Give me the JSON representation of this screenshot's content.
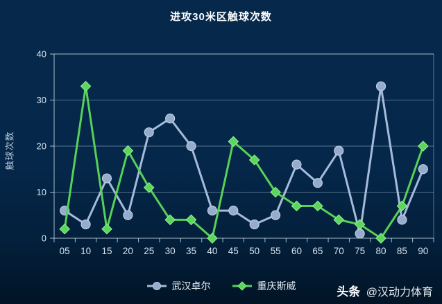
{
  "title": "进攻30米区触球次数",
  "watermark": {
    "brand": "头条",
    "handle": "@汉动力体育"
  },
  "chart_data": {
    "type": "line",
    "title": "进攻30米区触球次数",
    "xlabel": "",
    "ylabel": "触球次数",
    "categories": [
      "05",
      "10",
      "15",
      "20",
      "25",
      "30",
      "35",
      "40",
      "45",
      "50",
      "55",
      "60",
      "65",
      "70",
      "75",
      "80",
      "85",
      "90"
    ],
    "series": [
      {
        "name": "武汉卓尔",
        "marker": "circle",
        "color": "#a6bbda",
        "marker_fill": "#96accd",
        "marker_stroke": "#bccde5",
        "values": [
          6,
          3,
          13,
          5,
          23,
          26,
          20,
          6,
          6,
          3,
          5,
          16,
          12,
          19,
          1,
          33,
          4,
          15
        ]
      },
      {
        "name": "重庆斯威",
        "marker": "diamond",
        "color": "#57d157",
        "marker_fill": "#5bd65b",
        "marker_stroke": "#8ceb8f",
        "values": [
          2,
          33,
          2,
          19,
          11,
          4,
          4,
          0,
          21,
          17,
          10,
          7,
          7,
          4,
          3,
          0,
          7,
          20
        ]
      }
    ],
    "ylim": [
      0,
      40
    ],
    "ytick_interval": 10,
    "grid": true,
    "legend_position": "bottom",
    "background": "#052749",
    "grid_color": "rgba(205,225,242,0.42)",
    "axis_color": "rgba(220,236,248,0.75)",
    "tick_label_color": "#d7e4f1"
  }
}
